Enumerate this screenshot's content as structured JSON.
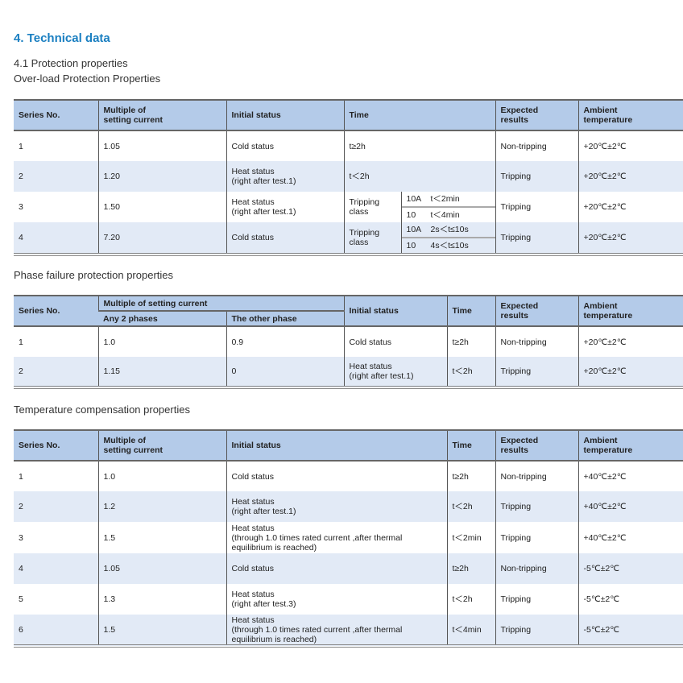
{
  "title": "4. Technical data",
  "section": "4.1 Protection properties",
  "overload": {
    "caption": "Over-load Protection Properties",
    "headers": [
      "Series No.",
      "Multiple of\nsetting current",
      "Initial status",
      "Time",
      "Expected\nresults",
      "Ambient\ntemperature"
    ],
    "rows": [
      {
        "no": "1",
        "mult": "1.05",
        "status": "Cold status",
        "time": "t≥2h",
        "result": "Non-tripping",
        "temp": "+20℃±2℃"
      },
      {
        "no": "2",
        "mult": "1.20",
        "status": "Heat status\n(right after test.1)",
        "time": "t＜2h",
        "result": "Tripping",
        "temp": "+20℃±2℃"
      },
      {
        "no": "3",
        "mult": "1.50",
        "status": "Heat status\n(right after test.1)",
        "time_label": "Tripping\nclass",
        "time_classes": [
          {
            "cls": "10A",
            "time": "t＜2min"
          },
          {
            "cls": "10",
            "time": "t＜4min"
          }
        ],
        "result": "Tripping",
        "temp": "+20℃±2℃"
      },
      {
        "no": "4",
        "mult": "7.20",
        "status": "Cold status",
        "time_label": "Tripping\nclass",
        "time_classes": [
          {
            "cls": "10A",
            "time": "2s＜t≤10s"
          },
          {
            "cls": "10",
            "time": "4s＜t≤10s"
          }
        ],
        "result": "Tripping",
        "temp": "+20℃±2℃"
      }
    ]
  },
  "phase": {
    "caption": "Phase failure protection properties",
    "headers": {
      "no": "Series No.",
      "mult": "Multiple of setting current",
      "any2": "Any 2 phases",
      "other": "The other phase",
      "status": "Initial status",
      "time": "Time",
      "result": "Expected\nresults",
      "temp": "Ambient\ntemperature"
    },
    "rows": [
      {
        "no": "1",
        "any2": "1.0",
        "other": "0.9",
        "status": "Cold status",
        "time": "t≥2h",
        "result": "Non-tripping",
        "temp": "+20℃±2℃"
      },
      {
        "no": "2",
        "any2": "1.15",
        "other": "0",
        "status": "Heat status\n(right after test.1)",
        "time": "t＜2h",
        "result": "Tripping",
        "temp": "+20℃±2℃"
      }
    ]
  },
  "tempcomp": {
    "caption": "Temperature compensation properties",
    "headers": [
      "Series No.",
      "Multiple of\nsetting current",
      "Initial status",
      "Time",
      "Expected\nresults",
      "Ambient\ntemperature"
    ],
    "rows": [
      {
        "no": "1",
        "mult": "1.0",
        "status": "Cold status",
        "time": "t≥2h",
        "result": "Non-tripping",
        "temp": "+40℃±2℃"
      },
      {
        "no": "2",
        "mult": "1.2",
        "status": "Heat status\n(right after test.1)",
        "time": "t＜2h",
        "result": "Tripping",
        "temp": "+40℃±2℃"
      },
      {
        "no": "3",
        "mult": "1.5",
        "status": "Heat status\n(through 1.0 times rated current ,after thermal\nequilibrium is reached)",
        "time": "t＜2min",
        "result": "Tripping",
        "temp": "+40℃±2℃"
      },
      {
        "no": "4",
        "mult": "1.05",
        "status": "Cold status",
        "time": "t≥2h",
        "result": "Non-tripping",
        "temp": "-5℃±2℃"
      },
      {
        "no": "5",
        "mult": "1.3",
        "status": "Heat status\n(right after test.3)",
        "time": "t＜2h",
        "result": "Tripping",
        "temp": "-5℃±2℃"
      },
      {
        "no": "6",
        "mult": "1.5",
        "status": "Heat status\n(through 1.0 times rated current ,after thermal\nequilibrium is reached)",
        "time": "t＜4min",
        "result": "Tripping",
        "temp": "-5℃±2℃"
      }
    ]
  }
}
